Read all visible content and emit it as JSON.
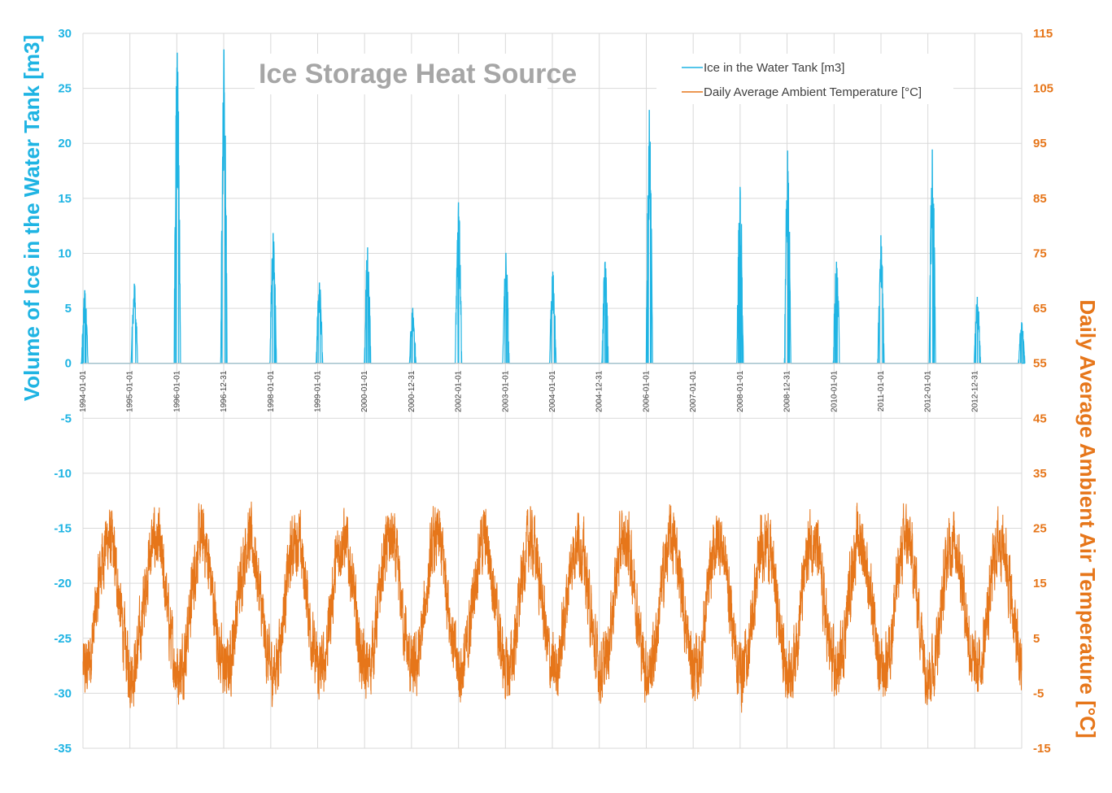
{
  "chart_data": {
    "type": "line",
    "title": "Ice Storage Heat Source",
    "y_left": {
      "label": "Volume of Ice in the Water Tank [m3]",
      "range": [
        -35,
        30
      ],
      "ticks": [
        "30",
        "25",
        "20",
        "15",
        "10",
        "5",
        "0",
        "-5",
        "-10",
        "-15",
        "-20",
        "-25",
        "-30",
        "-35"
      ],
      "color": "#1fb4e3"
    },
    "y_right": {
      "label": "Daily Average Ambient Air Temperature [°C]",
      "range": [
        -15,
        115
      ],
      "ticks": [
        "115",
        "105",
        "95",
        "85",
        "75",
        "65",
        "55",
        "45",
        "35",
        "25",
        "15",
        "5",
        "-5",
        "-15"
      ],
      "color": "#e6761a"
    },
    "x_range": [
      "1994-01-01",
      "2013-12-31"
    ],
    "x_tick_labels": [
      "1994-01-01",
      "1995-01-01",
      "1996-01-01",
      "1996-12-31",
      "1998-01-01",
      "1999-01-01",
      "2000-01-01",
      "2000-12-31",
      "2002-01-01",
      "2003-01-01",
      "2004-01-01",
      "2004-12-31",
      "2006-01-01",
      "2007-01-01",
      "2008-01-01",
      "2008-12-31",
      "2010-01-01",
      "2011-01-01",
      "2012-01-01",
      "2012-12-31"
    ],
    "grid": true,
    "legend_position": "top-right",
    "series": [
      {
        "name": "Ice in the Water Tank [m3]",
        "axis": "left",
        "color": "#1fb4e3",
        "winter_peaks": [
          {
            "date": "1994-01-15",
            "value": 6.6
          },
          {
            "date": "1995-02-05",
            "value": 7.2
          },
          {
            "date": "1996-01-05",
            "value": 28.2
          },
          {
            "date": "1997-01-02",
            "value": 28.5
          },
          {
            "date": "1998-01-20",
            "value": 11.8
          },
          {
            "date": "1999-01-15",
            "value": 7.3
          },
          {
            "date": "2000-01-25",
            "value": 10.5
          },
          {
            "date": "2001-01-10",
            "value": 5.0
          },
          {
            "date": "2002-01-01",
            "value": 14.6
          },
          {
            "date": "2003-01-05",
            "value": 10.0
          },
          {
            "date": "2004-01-05",
            "value": 8.3
          },
          {
            "date": "2005-02-15",
            "value": 9.2
          },
          {
            "date": "2006-01-25",
            "value": 23.0
          },
          {
            "date": "2008-01-01",
            "value": 16.0
          },
          {
            "date": "2009-01-05",
            "value": 19.3
          },
          {
            "date": "2010-01-20",
            "value": 9.2
          },
          {
            "date": "2011-01-01",
            "value": 11.6
          },
          {
            "date": "2012-02-05",
            "value": 19.4
          },
          {
            "date": "2013-01-20",
            "value": 6.0
          },
          {
            "date": "2013-12-31",
            "value": 3.7
          }
        ]
      },
      {
        "name": "Daily Average Ambient Temperature [°C]",
        "axis": "right",
        "color": "#e6761a",
        "annual_mean": 11,
        "annual_amplitude": 12,
        "max": 30,
        "min": -14
      }
    ]
  }
}
